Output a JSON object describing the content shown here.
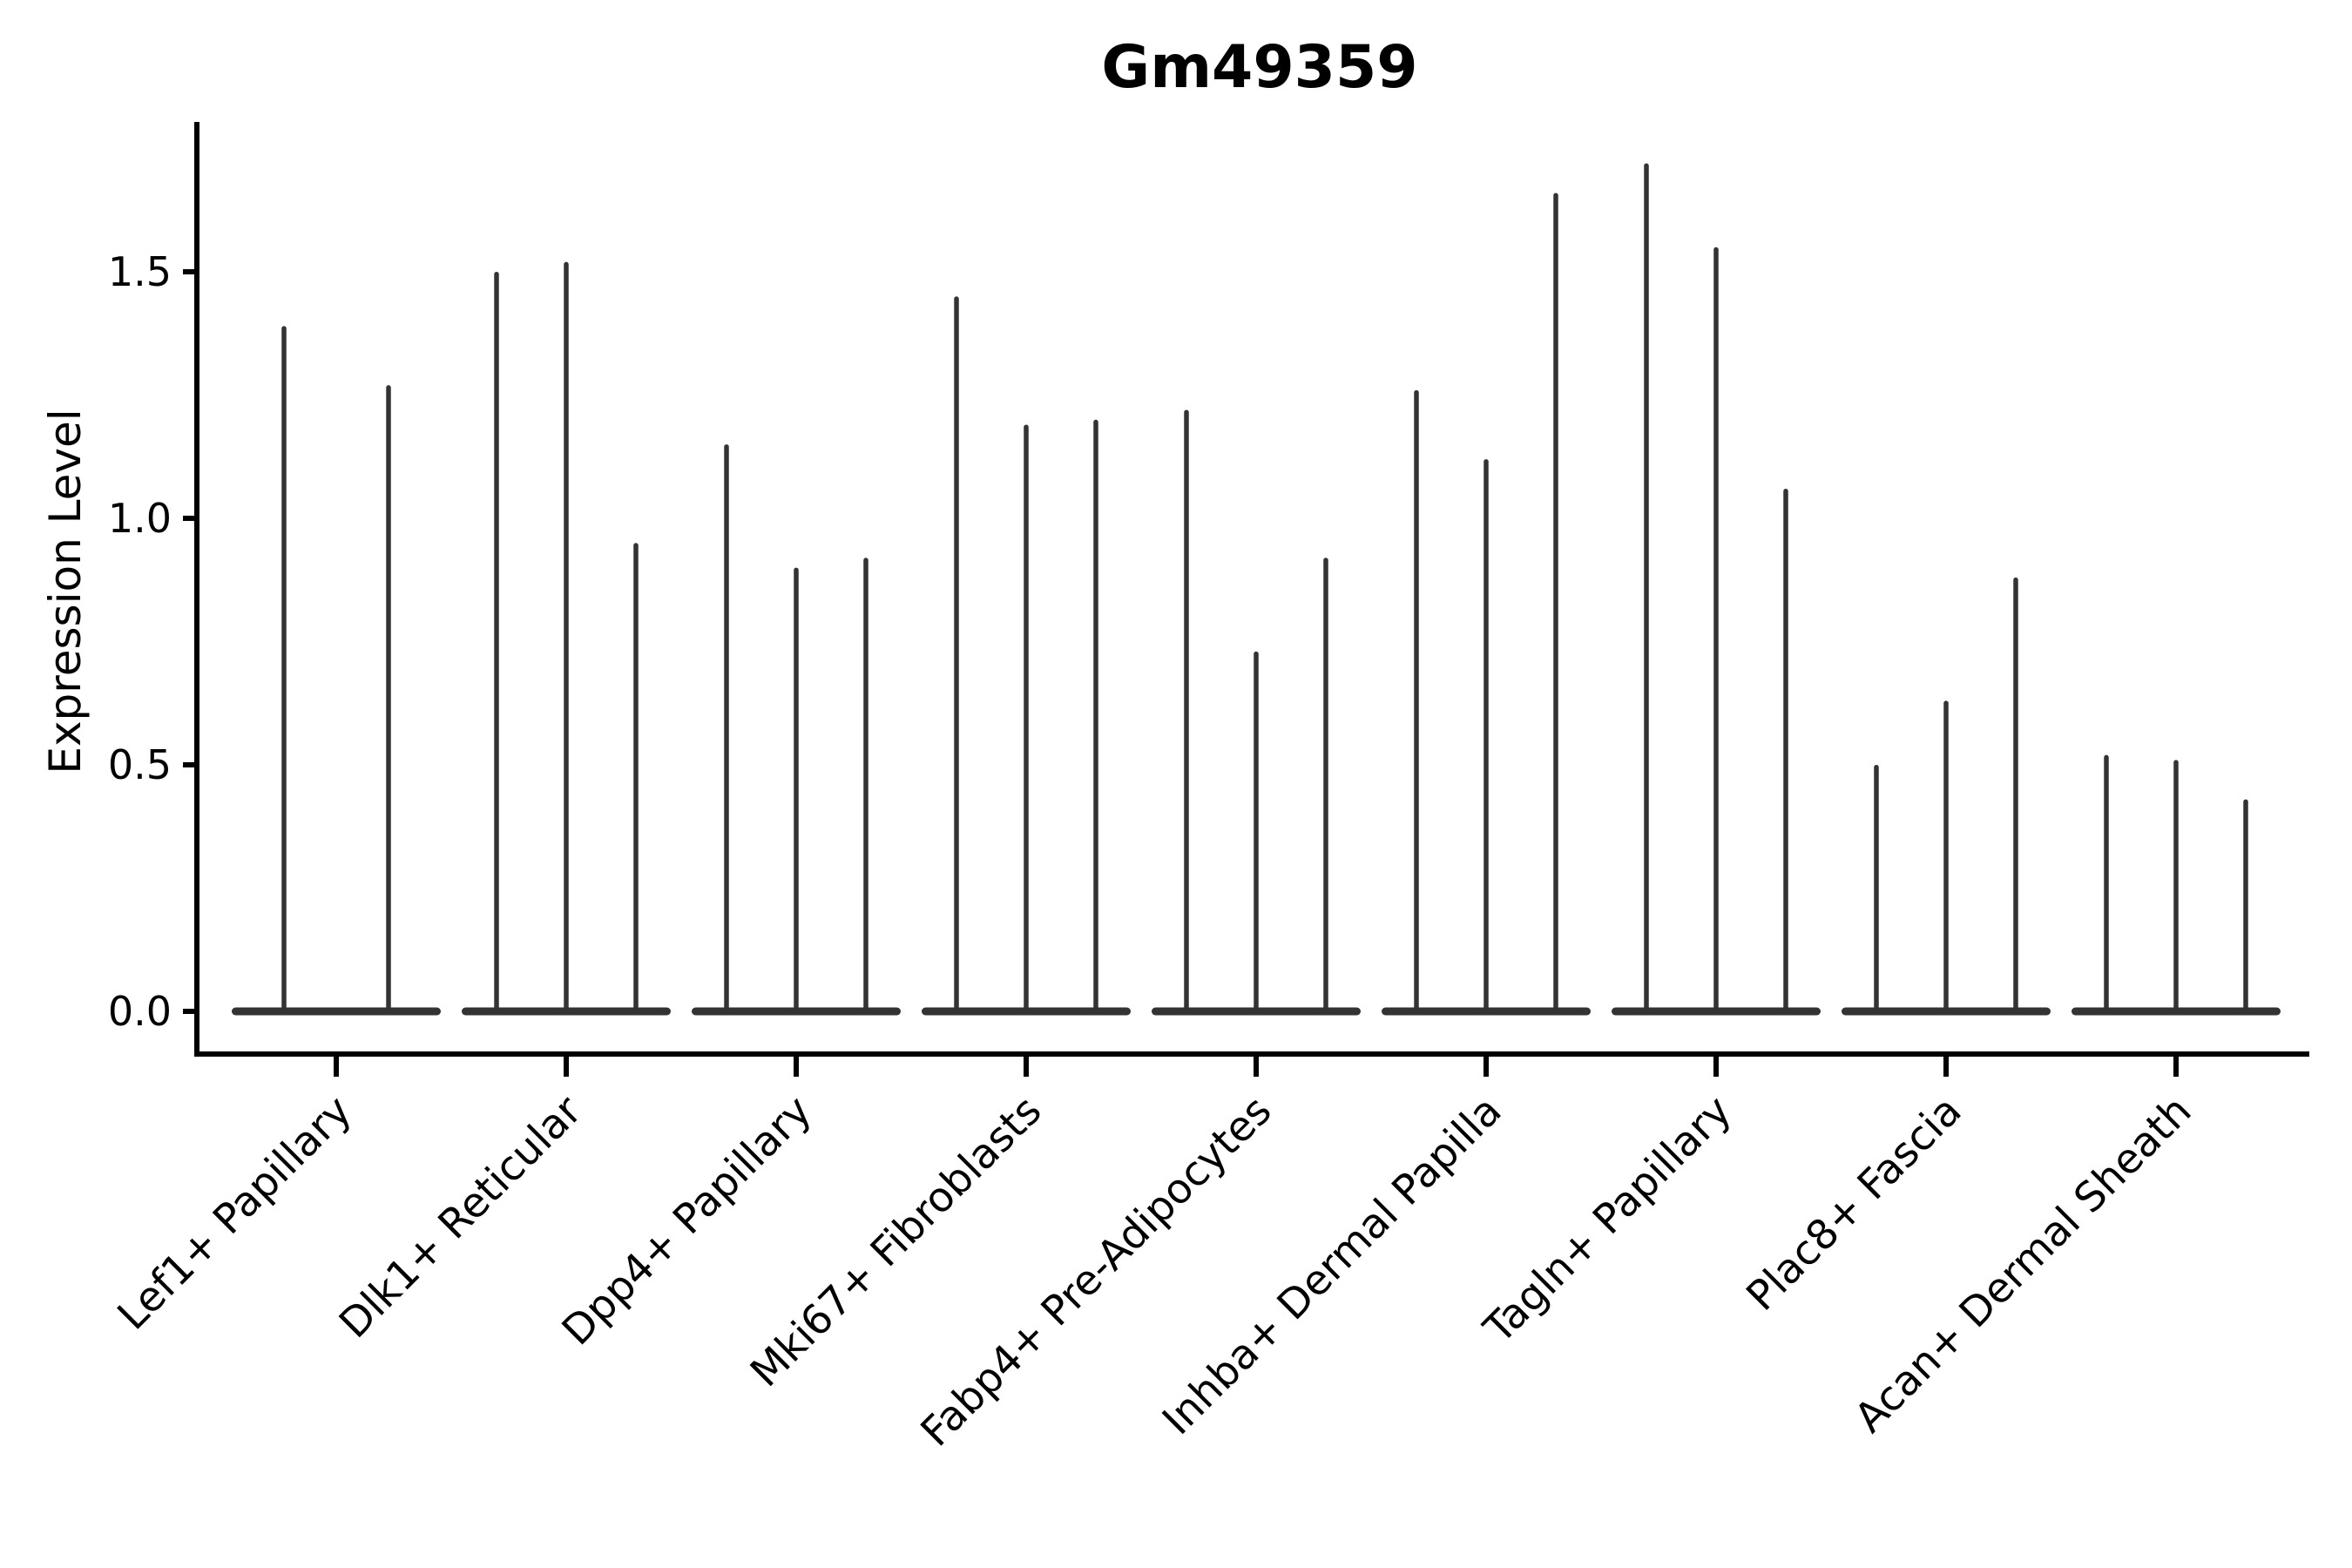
{
  "title": "Gm49359",
  "axes": {
    "ylabel": "Expression Level",
    "xlabel": "",
    "ytick_labels": [
      "0.0",
      "0.5",
      "1.0",
      "1.5"
    ]
  },
  "colors": {
    "violin": "#333333",
    "axis": "#000000",
    "text": "#000000",
    "background": "#ffffff"
  },
  "chart_data": {
    "type": "violin",
    "title": "Gm49359",
    "xlabel": "",
    "ylabel": "Expression Level",
    "yticks": [
      0.0,
      0.5,
      1.0,
      1.5
    ],
    "ytick_labels": [
      "0.0",
      "0.5",
      "1.0",
      "1.5"
    ],
    "ylim": [
      -0.08,
      1.8
    ],
    "grid": false,
    "legend": "none",
    "violin_style": "density concentrated at 0 (flat base) with a thin spike rising to the maximum expression value",
    "categories": [
      "Lef1+ Papillary",
      "Dlk1+ Reticular",
      "Dpp4+ Papillary",
      "Mki67+ Fibroblasts",
      "Fabp4+ Pre-Adipocytes",
      "Inhba+ Dermal Papilla",
      "Tagln+ Papillary",
      "Plac8+ Fascia",
      "Acan+ Dermal Sheath"
    ],
    "groups": [
      {
        "category": "Lef1+ Papillary",
        "violin_peaks": [
          1.39,
          1.27
        ]
      },
      {
        "category": "Dlk1+ Reticular",
        "violin_peaks": [
          1.5,
          1.52,
          0.95
        ]
      },
      {
        "category": "Dpp4+ Papillary",
        "violin_peaks": [
          1.15,
          0.9,
          0.92
        ]
      },
      {
        "category": "Mki67+ Fibroblasts",
        "violin_peaks": [
          1.45,
          1.19,
          1.2
        ]
      },
      {
        "category": "Fabp4+ Pre-Adipocytes",
        "violin_peaks": [
          1.22,
          0.73,
          0.92
        ]
      },
      {
        "category": "Inhba+ Dermal Papilla",
        "violin_peaks": [
          1.26,
          1.12,
          1.66
        ]
      },
      {
        "category": "Tagln+ Papillary",
        "violin_peaks": [
          1.72,
          1.55,
          1.06
        ]
      },
      {
        "category": "Plac8+ Fascia",
        "violin_peaks": [
          0.5,
          0.63,
          0.88
        ]
      },
      {
        "category": "Acan+ Dermal Sheath",
        "violin_peaks": [
          0.52,
          0.51,
          0.43
        ]
      }
    ]
  }
}
